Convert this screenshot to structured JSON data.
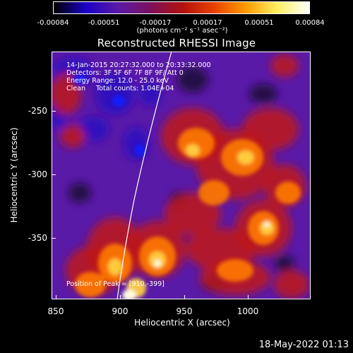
{
  "colorbar": {
    "stops": [
      "#000000",
      "#1a00c8",
      "#5a1aa8",
      "#7a1060",
      "#b01010",
      "#e84000",
      "#ff9a00",
      "#fff060",
      "#ffffff"
    ],
    "tick_labels": [
      "-0.00084",
      "-0.00051",
      "-0.00017",
      "0.00017",
      "0.00051",
      "0.00084"
    ],
    "units_label": "(photons cm⁻² s⁻¹ asec⁻²)"
  },
  "title": "Reconstructed RHESSI Image",
  "info": {
    "time_range": "14-Jan-2015 20:27:32.000 to 20:33:32.000",
    "detectors": "Detectors: 3F 5F 6F 7F 8F 9F/ Att 0",
    "energy_range": "Energy Range: 12.0 - 25.0 keV",
    "clean_counts": "Clean     Total counts: 1.04E+04",
    "peak_position": "Position of Peak = [910,-399]"
  },
  "axes": {
    "x_title": "Heliocentric X (arcsec)",
    "y_title": "Heliocentric Y (arcsec)",
    "x_tick_labels": [
      "850",
      "900",
      "950",
      "1000"
    ],
    "y_tick_labels": [
      "-250",
      "-300",
      "-350"
    ]
  },
  "footer": {
    "date_stamp": "18-May-2022 01:13"
  }
}
